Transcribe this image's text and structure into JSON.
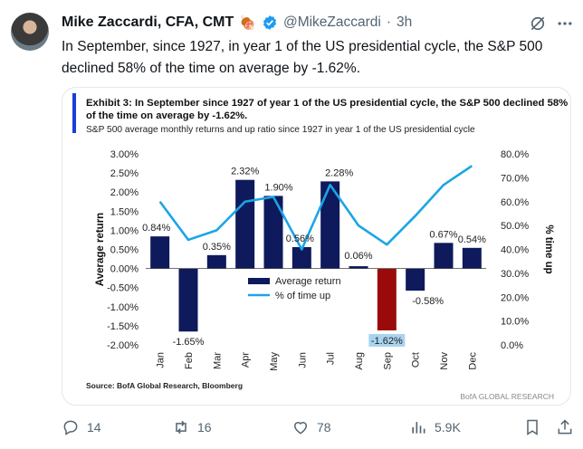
{
  "author": {
    "name": "Mike Zaccardi, CFA, CMT",
    "emoji": "🍖",
    "handle": "@MikeZaccardi",
    "separator": "·",
    "time": "3h"
  },
  "tweet": {
    "text": "In September, since 1927, in year 1 of the US presidential cycle, the S&P 500 declined 58% of the time on average by -1.62%."
  },
  "exhibit": {
    "title": "Exhibit 3: In September since 1927 of year 1 of the US presidential cycle, the S&P 500 declined 58% of the time on average by -1.62%.",
    "subtitle": "S&P 500 average monthly returns and up ratio since 1927 in year 1 of the US presidential cycle",
    "source": "Source: BofA Global Research, Bloomberg",
    "brand": "BofA GLOBAL RESEARCH"
  },
  "chart_data": {
    "type": "bar",
    "categories": [
      "Jan",
      "Feb",
      "Mar",
      "Apr",
      "May",
      "Jun",
      "Jul",
      "Aug",
      "Sep",
      "Oct",
      "Nov",
      "Dec"
    ],
    "series": [
      {
        "name": "Average return",
        "axis": "left",
        "values": [
          0.84,
          -1.65,
          0.35,
          2.32,
          1.9,
          0.56,
          2.28,
          0.06,
          -1.62,
          -0.58,
          0.67,
          0.54
        ]
      },
      {
        "name": "% of time up",
        "type": "line",
        "axis": "right",
        "values": [
          60,
          44,
          48,
          60,
          62,
          40,
          67,
          50,
          42,
          54,
          67,
          75
        ]
      }
    ],
    "data_labels": [
      "0.84%",
      "-1.65%",
      "0.35%",
      "2.32%",
      "1.90%",
      "0.56%",
      "2.28%",
      "0.06%",
      "-1.62%",
      "-0.58%",
      "0.67%",
      "0.54%"
    ],
    "ylabel": "Average return",
    "y2label": "% time up",
    "ylim": [
      -2.0,
      3.0
    ],
    "y2lim": [
      0,
      80
    ],
    "yticks": [
      "-2.00%",
      "-1.50%",
      "-1.00%",
      "-0.50%",
      "0.00%",
      "0.50%",
      "1.00%",
      "1.50%",
      "2.00%",
      "2.50%",
      "3.00%"
    ],
    "y2ticks": [
      "0.0%",
      "10.0%",
      "20.0%",
      "30.0%",
      "40.0%",
      "50.0%",
      "60.0%",
      "70.0%",
      "80.0%"
    ],
    "legend": [
      "Average return",
      "% of time up"
    ],
    "highlight_category": "Sep",
    "colors": {
      "bar": "#0e1a5c",
      "highlight": "#9b0a0a",
      "line": "#1aa5e6",
      "highlight_label_bg": "#a9d4ef"
    }
  },
  "actions": {
    "replies": "14",
    "reposts": "16",
    "likes": "78",
    "views": "5.9K"
  }
}
